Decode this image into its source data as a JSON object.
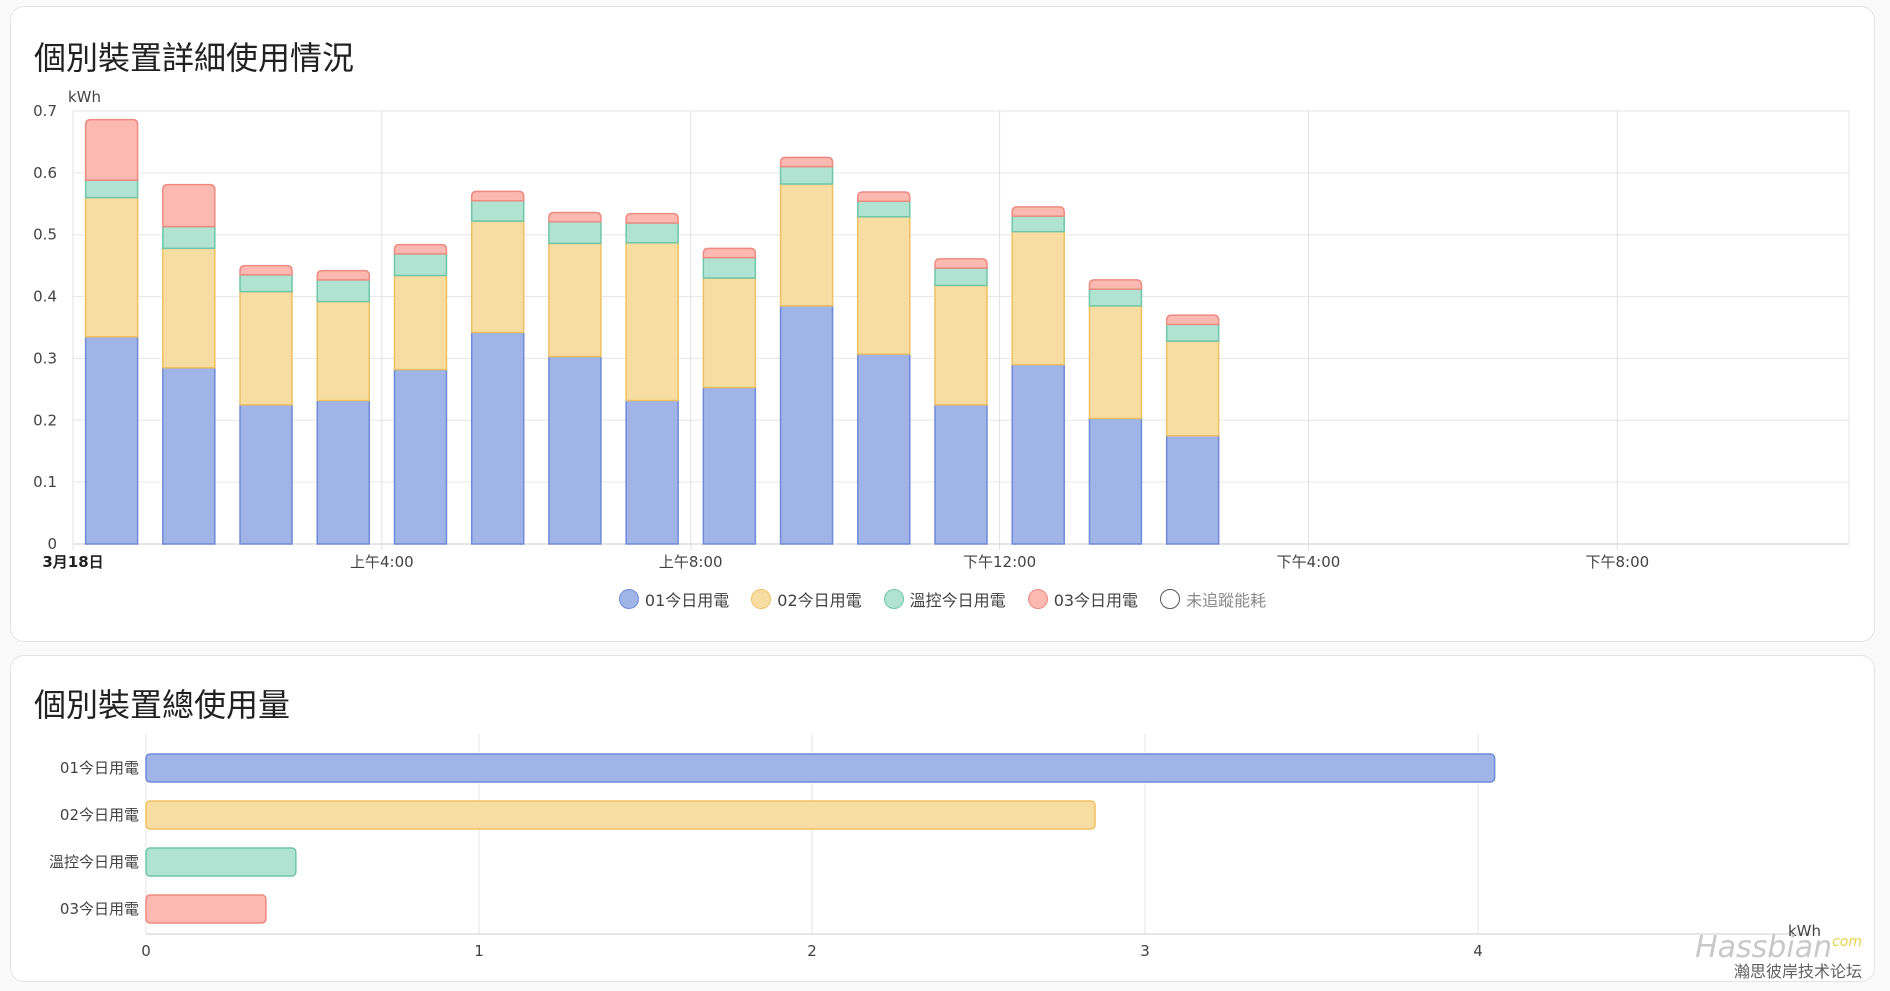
{
  "card_detail": {
    "title": "個別裝置詳細使用情況",
    "legend": [
      {
        "label": "01今日用電",
        "color": "#a0b4e8",
        "border": "#6f8ad6",
        "active": true
      },
      {
        "label": "02今日用電",
        "color": "#f8dda3",
        "border": "#efc062",
        "active": true
      },
      {
        "label": "溫控今日用電",
        "color": "#b1e3d2",
        "border": "#6fc6a8",
        "active": true
      },
      {
        "label": "03今日用電",
        "color": "#fbb9b1",
        "border": "#ee8a80",
        "active": true
      },
      {
        "label": "未追蹤能耗",
        "color": "#ffffff",
        "border": "#555555",
        "active": false
      }
    ]
  },
  "card_total": {
    "title": "個別裝置總使用量"
  },
  "watermark": {
    "logo": "Hassbian",
    "com": "com",
    "subtitle": "瀚思彼岸技术论坛"
  },
  "chart_data": [
    {
      "type": "bar",
      "stacked": true,
      "orientation": "vertical",
      "ylabel": "kWh",
      "ylim": [
        0,
        0.7
      ],
      "yticks": [
        0,
        0.1,
        0.2,
        0.3,
        0.4,
        0.5,
        0.6,
        0.7
      ],
      "xlim_hours": [
        0,
        23
      ],
      "xticks": [
        {
          "label": "3月18日",
          "hour": 0,
          "bold": true
        },
        {
          "label": "上午4:00",
          "hour": 4,
          "bold": false
        },
        {
          "label": "上午8:00",
          "hour": 8,
          "bold": false
        },
        {
          "label": "下午12:00",
          "hour": 12,
          "bold": false
        },
        {
          "label": "下午4:00",
          "hour": 16,
          "bold": false
        },
        {
          "label": "下午8:00",
          "hour": 20,
          "bold": false
        }
      ],
      "hours": [
        0,
        1,
        2,
        3,
        4,
        5,
        6,
        7,
        8,
        9,
        10,
        11,
        12,
        13,
        14
      ],
      "series": [
        {
          "name": "01今日用電",
          "values": [
            0.335,
            0.285,
            0.225,
            0.232,
            0.282,
            0.342,
            0.303,
            0.232,
            0.253,
            0.385,
            0.307,
            0.225,
            0.29,
            0.203,
            0.175
          ]
        },
        {
          "name": "02今日用電",
          "values": [
            0.225,
            0.193,
            0.183,
            0.16,
            0.152,
            0.18,
            0.183,
            0.255,
            0.177,
            0.197,
            0.222,
            0.193,
            0.215,
            0.182,
            0.153
          ]
        },
        {
          "name": "溫控今日用電",
          "values": [
            0.028,
            0.035,
            0.027,
            0.035,
            0.035,
            0.033,
            0.035,
            0.032,
            0.033,
            0.028,
            0.025,
            0.028,
            0.025,
            0.027,
            0.027
          ]
        },
        {
          "name": "03今日用電",
          "values": [
            0.098,
            0.068,
            0.015,
            0.015,
            0.015,
            0.015,
            0.015,
            0.015,
            0.015,
            0.015,
            0.015,
            0.015,
            0.015,
            0.015,
            0.015
          ]
        }
      ]
    },
    {
      "type": "bar",
      "orientation": "horizontal",
      "xlabel": "kWh",
      "xlim": [
        0,
        5
      ],
      "xticks": [
        0,
        1,
        2,
        3,
        4
      ],
      "categories": [
        "01今日用電",
        "02今日用電",
        "溫控今日用電",
        "03今日用電"
      ],
      "values": [
        4.05,
        2.85,
        0.45,
        0.36
      ]
    }
  ]
}
